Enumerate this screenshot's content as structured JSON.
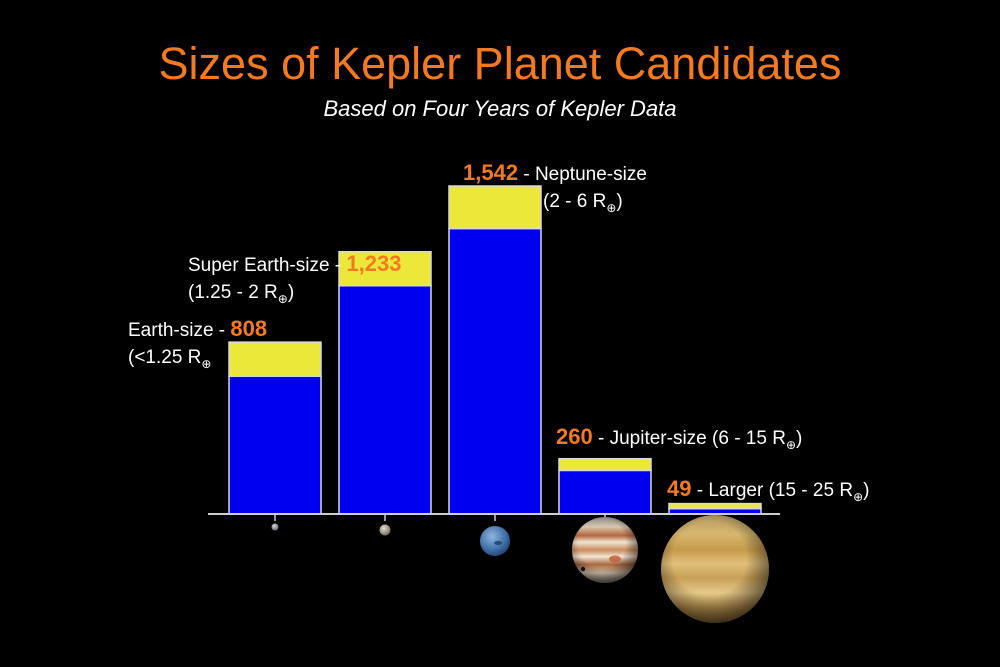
{
  "colors": {
    "title": "#f47a21",
    "count": "#f47a21",
    "bar_blue": "#0000f0",
    "bar_yellow": "#ece83a",
    "bar_outline": "#d8d8d8",
    "background": "#000000"
  },
  "chart_data": {
    "type": "bar",
    "stacked": true,
    "title": "Sizes of Kepler Planet Candidates",
    "subtitle": "Based on Four Years of Kepler Data",
    "xlabel": "",
    "ylabel": "",
    "ylim": [
      0,
      1600
    ],
    "grid": false,
    "categories": [
      "Earth-size",
      "Super Earth-size",
      "Neptune-size",
      "Jupiter-size",
      "Larger"
    ],
    "series": [
      {
        "color": "#0000f0",
        "values": [
          648,
          1073,
          1342,
          205,
          25
        ]
      },
      {
        "color": "#ece83a",
        "values": [
          160,
          160,
          200,
          55,
          24
        ]
      }
    ],
    "totals": [
      808,
      1233,
      1542,
      260,
      49
    ],
    "labels": [
      {
        "count": "808",
        "name": "Earth-size",
        "range_pre": "(<1.25 R",
        "range_post": "",
        "arrangement": "name-first"
      },
      {
        "count": "1,233",
        "name": "Super Earth-size",
        "range_pre": "(1.25 - 2 R",
        "range_post": ")",
        "arrangement": "name-first"
      },
      {
        "count": "1,542",
        "name": "Neptune-size",
        "range_pre": "(2 - 6 R",
        "range_post": ")",
        "arrangement": "count-first"
      },
      {
        "count": "260",
        "name": "Jupiter-size",
        "range_pre": "(6 - 15 R",
        "range_post": ")",
        "arrangement": "count-first-inline"
      },
      {
        "count": "49",
        "name": "Larger",
        "range_pre": "(15 - 25 R",
        "range_post": ")",
        "arrangement": "count-first-inline"
      }
    ],
    "earth_symbol": "⊕",
    "planets": [
      {
        "icon": "small-rocky-planet-icon",
        "relative_size": 1
      },
      {
        "icon": "super-earth-planet-icon",
        "relative_size": 1.6
      },
      {
        "icon": "neptune-planet-icon",
        "relative_size": 4
      },
      {
        "icon": "jupiter-planet-icon",
        "relative_size": 9
      },
      {
        "icon": "large-gas-planet-icon",
        "relative_size": 14.5
      }
    ]
  }
}
